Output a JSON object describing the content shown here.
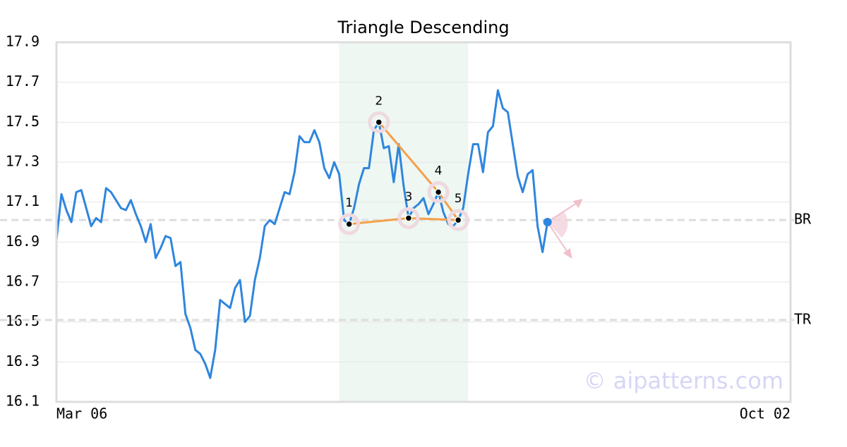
{
  "chart_data": {
    "type": "line",
    "title": "Triangle Descending",
    "categories": [
      "Mar 06",
      null,
      null,
      null,
      null,
      null,
      null,
      null,
      null,
      null,
      null,
      null,
      null,
      null,
      null,
      null,
      null,
      null,
      null,
      null,
      null,
      null,
      null,
      null,
      null,
      null,
      null,
      null,
      null,
      null,
      null,
      null,
      null,
      null,
      null,
      null,
      null,
      null,
      null,
      null,
      null,
      null,
      null,
      null,
      null,
      null,
      null,
      null,
      null,
      null,
      null,
      null,
      null,
      null,
      null,
      null,
      null,
      null,
      null,
      null,
      null,
      null,
      null,
      null,
      null,
      null,
      null,
      null,
      null,
      null,
      null,
      null,
      null,
      null,
      null,
      null,
      null,
      null,
      null,
      null,
      null,
      null,
      null,
      null,
      null,
      null,
      null,
      null,
      null,
      null,
      null,
      null,
      null,
      null,
      null,
      null,
      null,
      null,
      null,
      null,
      null,
      null,
      null,
      null,
      null,
      null,
      null,
      null,
      null,
      null,
      null,
      null,
      null,
      null,
      null,
      null,
      null,
      null,
      null,
      null,
      null,
      null,
      null,
      null,
      null,
      null,
      null,
      null,
      null,
      null,
      null,
      null,
      null,
      null,
      null,
      null,
      null,
      null,
      null,
      null,
      null,
      null,
      null,
      null,
      null,
      null,
      null,
      null,
      "Oct 02"
    ],
    "series": [
      {
        "color": "#2e86de",
        "values": [
          16.91,
          17.14,
          17.06,
          17.0,
          17.15,
          17.16,
          17.07,
          16.98,
          17.02,
          17.0,
          17.17,
          17.15,
          17.11,
          17.07,
          17.06,
          17.11,
          17.04,
          16.98,
          16.9,
          16.99,
          16.82,
          16.87,
          16.93,
          16.92,
          16.78,
          16.8,
          16.54,
          16.47,
          16.36,
          16.34,
          16.29,
          16.22,
          16.36,
          16.61,
          16.59,
          16.57,
          16.67,
          16.71,
          16.5,
          16.53,
          16.71,
          16.82,
          16.98,
          17.01,
          16.99,
          17.07,
          17.15,
          17.14,
          17.25,
          17.43,
          17.4,
          17.4,
          17.46,
          17.4,
          17.27,
          17.22,
          17.3,
          17.24,
          17.01,
          16.99,
          17.07,
          17.19,
          17.27,
          17.27,
          17.46,
          17.5,
          17.37,
          17.38,
          17.2,
          17.39,
          17.18,
          17.02,
          17.07,
          17.09,
          17.12,
          17.04,
          17.09,
          17.15,
          17.05,
          16.99,
          16.98,
          17.01,
          17.07,
          17.24,
          17.39,
          17.39,
          17.25,
          17.45,
          17.48,
          17.66,
          17.57,
          17.55,
          17.39,
          17.23,
          17.15,
          17.24,
          17.26,
          16.98,
          16.85,
          17.0,
          null,
          null,
          null,
          null,
          null,
          null,
          null,
          null,
          null,
          null,
          null,
          null,
          null,
          null,
          null,
          null,
          null,
          null,
          null,
          null,
          null,
          null,
          null,
          null,
          null,
          null,
          null,
          null,
          null,
          null,
          null,
          null,
          null,
          null,
          null,
          null,
          null,
          null,
          null,
          null,
          null,
          null,
          null,
          null,
          null,
          null,
          null,
          null,
          null
        ]
      }
    ],
    "pattern": {
      "color": "#f5a04a",
      "points": [
        {
          "label": "1",
          "x": 59,
          "value": 16.99
        },
        {
          "label": "2",
          "x": 65,
          "value": 17.5
        },
        {
          "label": "3",
          "x": 71,
          "value": 17.02
        },
        {
          "label": "4",
          "x": 77,
          "value": 17.15
        },
        {
          "label": "5",
          "x": 81,
          "value": 17.01
        }
      ]
    },
    "shaded_range": [
      57,
      83
    ],
    "reference_lines": [
      {
        "label": "BR",
        "value": 17.01
      },
      {
        "label": "TR",
        "value": 16.51
      }
    ],
    "ylim": [
      16.1,
      17.9
    ],
    "yticks": [
      16.1,
      16.3,
      16.5,
      16.7,
      16.9,
      17.1,
      17.3,
      17.5,
      17.7,
      17.9
    ],
    "grid": true,
    "watermark": "© aipatterns.com"
  }
}
